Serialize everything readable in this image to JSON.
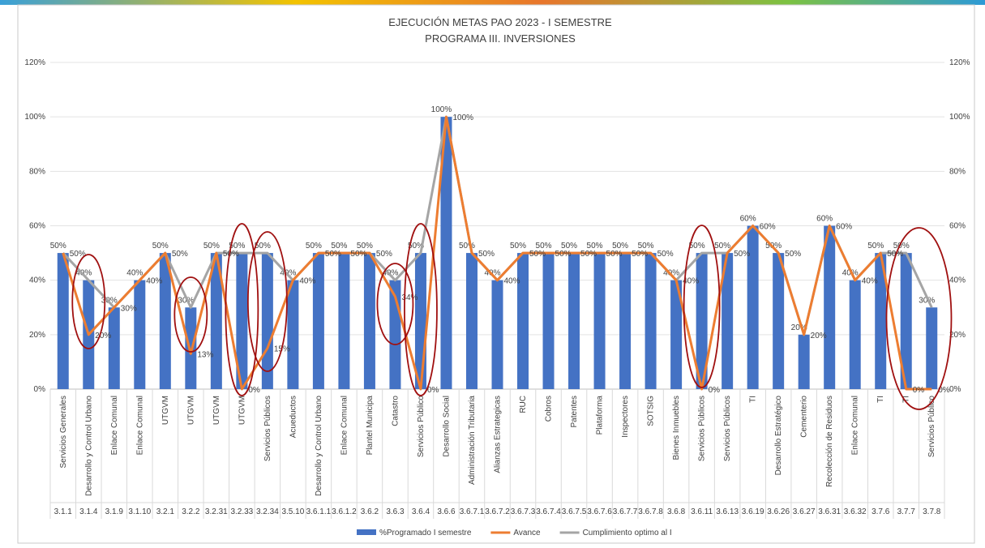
{
  "chart_data": {
    "type": "bar-line",
    "title": "EJECUCIÓN METAS PAO  2023 - I SEMESTRE",
    "subtitle": "PROGRAMA  III. INVERSIONES",
    "categories": [
      "Servicios Generales",
      "Desarrollo y Control Urbano",
      "Enlace Comunal",
      "Enlace Comunal",
      "UTGVM",
      "UTGVM",
      "UTGVM",
      "UTGVM",
      "Servicios Públicos",
      "Acueductos",
      "Desarrollo y Control Urbano",
      "Enlace Comunal",
      "Plantel Municipa",
      "Catastro",
      "Servicios Público",
      "Desarrollo Social",
      "Administración Tributaria",
      "Alianzas Estrategicas",
      "RUC",
      "Cobros",
      "Patentes",
      "Plataforma",
      "Inspectores",
      "SOTSIG",
      "Bienes Inmuebles",
      "Servicios Públicos",
      "Servicios Públicos",
      "TI",
      "Desarrollo Estratégico",
      "Cementerio",
      "Recolección de Residuos",
      "Enlace Comunal",
      "TI",
      "TI",
      "Servicios Público"
    ],
    "codes": [
      "3.1.1",
      "3.1.4",
      "3.1.9",
      "3.1.10",
      "3.2.1",
      "3.2.2",
      "3.2.31",
      "3.2.33",
      "3.2.34",
      "3.5.10",
      "3.6.1.1",
      "3.6.1.2",
      "3.6.2",
      "3.6.3",
      "3.6.4",
      "3.6.6",
      "3.6.7.1",
      "3.6.7.2",
      "3.6.7.3",
      "3.6.7.4",
      "3.6.7.5",
      "3.6.7.6",
      "3.6.7.7",
      "3.6.7.8",
      "3.6.8",
      "3.6.11",
      "3.6.13",
      "3.6.19",
      "3.6.26",
      "3.6.27",
      "3.6.31",
      "3.6.32",
      "3.7.6",
      "3.7.7",
      "3.7.8"
    ],
    "series": [
      {
        "name": "%Programado I semestre",
        "kind": "bar",
        "color": "#4472c4",
        "values": [
          50,
          40,
          30,
          40,
          50,
          30,
          50,
          50,
          50,
          40,
          50,
          50,
          50,
          40,
          50,
          100,
          50,
          40,
          50,
          50,
          50,
          50,
          50,
          50,
          40,
          50,
          50,
          60,
          50,
          20,
          60,
          40,
          50,
          50,
          30
        ],
        "value_labels": [
          "50%",
          "40%",
          "30%",
          "40%",
          "50%",
          "30%",
          "50%",
          "50%",
          "50%",
          "40%",
          "50%",
          "50%",
          "50%",
          "40%",
          "50%",
          "100%",
          "50%",
          "40%",
          "50%",
          "50%",
          "50%",
          "50%",
          "50%",
          "50%",
          "40%",
          "50%",
          "50%",
          "60%",
          "50%",
          "20%",
          "60%",
          "40%",
          "50%",
          "50%",
          "30%"
        ]
      },
      {
        "name": "Avance",
        "kind": "line",
        "color": "#ed7d31",
        "values": [
          50,
          20,
          30,
          40,
          50,
          13,
          50,
          0,
          15,
          40,
          50,
          50,
          50,
          34,
          0,
          100,
          50,
          40,
          50,
          50,
          50,
          50,
          50,
          50,
          40,
          0,
          50,
          60,
          50,
          20,
          60,
          40,
          50,
          0,
          0
        ],
        "value_labels": [
          "50%",
          "20%",
          "30%",
          "40%",
          "50%",
          "13%",
          "50%",
          "0%",
          "15%",
          "40%",
          "50%",
          "50%",
          "50%",
          "34%",
          "0%",
          "100%",
          "50%",
          "40%",
          "50%",
          "50%",
          "50%",
          "50%",
          "50%",
          "50%",
          "40%",
          "0%",
          "50%",
          "60%",
          "50%",
          "20%",
          "60%",
          "40%",
          "50%",
          "0%",
          "0%"
        ]
      },
      {
        "name": "Cumplimiento optimo  al I",
        "kind": "line",
        "color": "#a5a5a5",
        "values": [
          50,
          40,
          30,
          40,
          50,
          30,
          50,
          50,
          50,
          40,
          50,
          50,
          50,
          40,
          50,
          100,
          50,
          40,
          50,
          50,
          50,
          50,
          50,
          50,
          40,
          50,
          50,
          60,
          50,
          20,
          60,
          40,
          50,
          50,
          30
        ]
      }
    ],
    "ylim": [
      0,
      120
    ],
    "yticks": [
      {
        "value": 0,
        "label": "0%"
      },
      {
        "value": 20,
        "label": "20%"
      },
      {
        "value": 40,
        "label": "40%"
      },
      {
        "value": 60,
        "label": "60%"
      },
      {
        "value": 80,
        "label": "80%"
      },
      {
        "value": 100,
        "label": "100%"
      },
      {
        "value": 120,
        "label": "120%"
      }
    ],
    "y2lim": [
      0,
      120
    ],
    "y2ticks": [
      {
        "value": 0,
        "label": "0%"
      },
      {
        "value": 20,
        "label": "20%"
      },
      {
        "value": 40,
        "label": "40%"
      },
      {
        "value": 60,
        "label": "60%"
      },
      {
        "value": 80,
        "label": "80%"
      },
      {
        "value": 100,
        "label": "100%"
      },
      {
        "value": 120,
        "label": "120%"
      }
    ],
    "legend": "bottom"
  }
}
